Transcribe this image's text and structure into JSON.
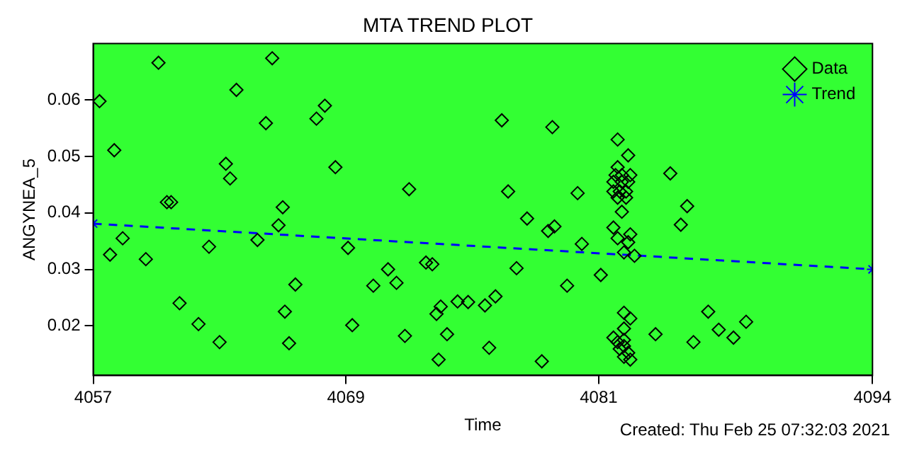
{
  "chart_data": {
    "type": "scatter",
    "title": "MTA TREND PLOT",
    "xlabel": "Time",
    "ylabel": "ANGYNEA_5",
    "xlim": [
      4057,
      4094
    ],
    "xticks": [
      4057,
      4069,
      4081,
      4094
    ],
    "ylim": [
      0.0112,
      0.07
    ],
    "yticks": [
      0.02,
      0.03,
      0.04,
      0.05,
      0.06
    ],
    "grid": false,
    "legend": "top right",
    "annotations": [
      "Created: Thu Feb 25 07:32:03 2021"
    ],
    "series": [
      {
        "name": "Data",
        "marker": "diamond",
        "color": "#000000",
        "x": [
          4060.1,
          4065.5,
          4057.3,
          4063.8,
          4068.0,
          4067.6,
          4065.2,
          4058.0,
          4063.3,
          4068.5,
          4063.5,
          4060.5,
          4060.7,
          4066.0,
          4065.8,
          4058.4,
          4064.8,
          4069.1,
          4057.8,
          4062.5,
          4059.5,
          4066.6,
          4061.1,
          4066.1,
          4062.0,
          4069.3,
          4063.0,
          4066.3,
          4076.4,
          4078.8,
          4072.0,
          4076.7,
          4080.0,
          4077.6,
          4078.9,
          4078.6,
          4080.2,
          4071.0,
          4072.8,
          4073.1,
          4077.1,
          4081.1,
          4070.3,
          4071.4,
          4079.5,
          4076.1,
          4074.3,
          4074.8,
          4073.5,
          4075.6,
          4073.3,
          4071.8,
          4073.8,
          4075.8,
          4073.4,
          4078.3,
          4081.9,
          4082.4,
          4081.9,
          4081.8,
          4082.1,
          4082.5,
          4081.7,
          4082.1,
          4082.4,
          4081.7,
          4082.0,
          4082.3,
          4081.9,
          4082.3,
          4082.1,
          4084.4,
          4085.2,
          4084.9,
          4081.7,
          4082.5,
          4081.9,
          4082.4,
          4082.2,
          4082.7,
          4082.2,
          4082.5,
          4082.2,
          4081.7,
          4082.2,
          4081.9,
          4082.2,
          4082.0,
          4082.4,
          4082.2,
          4082.5,
          4083.7,
          4086.2,
          4086.7,
          4087.4,
          4088.0,
          4085.5
        ],
        "values": [
          0.0666,
          0.0674,
          0.0598,
          0.0618,
          0.059,
          0.0567,
          0.0559,
          0.0511,
          0.0487,
          0.0481,
          0.0461,
          0.0419,
          0.0419,
          0.041,
          0.0378,
          0.0355,
          0.0352,
          0.0338,
          0.0326,
          0.034,
          0.0318,
          0.0273,
          0.024,
          0.0225,
          0.0203,
          0.0201,
          0.0171,
          0.0169,
          0.0564,
          0.0552,
          0.0442,
          0.0438,
          0.0435,
          0.039,
          0.0376,
          0.0368,
          0.0345,
          0.03,
          0.0312,
          0.0309,
          0.0302,
          0.029,
          0.0271,
          0.0276,
          0.0271,
          0.0252,
          0.0243,
          0.0242,
          0.0234,
          0.0236,
          0.0221,
          0.0182,
          0.0185,
          0.0161,
          0.014,
          0.0137,
          0.053,
          0.0502,
          0.0481,
          0.0467,
          0.0467,
          0.0467,
          0.0455,
          0.0455,
          0.0455,
          0.0438,
          0.0438,
          0.0438,
          0.0427,
          0.0427,
          0.0402,
          0.047,
          0.0412,
          0.0379,
          0.0374,
          0.0362,
          0.0355,
          0.0348,
          0.033,
          0.0324,
          0.0223,
          0.0213,
          0.0195,
          0.0179,
          0.0175,
          0.0171,
          0.0164,
          0.0159,
          0.0152,
          0.0145,
          0.014,
          0.0185,
          0.0225,
          0.0193,
          0.0179,
          0.0207,
          0.0171
        ]
      },
      {
        "name": "Trend",
        "type": "line",
        "marker": "cross",
        "line_style": "dashed",
        "color": "#0000ff",
        "x": [
          4057,
          4094
        ],
        "values": [
          0.0381,
          0.03
        ]
      }
    ]
  }
}
